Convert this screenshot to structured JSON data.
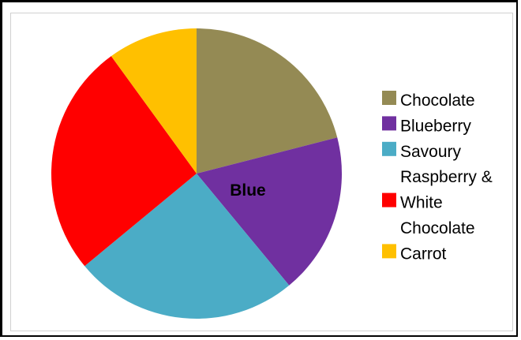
{
  "chart_data": {
    "type": "pie",
    "title": "",
    "slices": [
      {
        "label": "Chocolate",
        "value": 21,
        "color": "#948a54"
      },
      {
        "label": "Blueberry",
        "value": 18,
        "color": "#7030a0"
      },
      {
        "label": "Savoury",
        "value": 25,
        "color": "#4bacc6"
      },
      {
        "label": "Raspberry & White Chocolate",
        "value": 26,
        "color": "#ff0000"
      },
      {
        "label": "Carrot",
        "value": 10,
        "color": "#ffc000"
      }
    ],
    "start_angle_deg": 0,
    "direction": "clockwise",
    "legend_position": "right",
    "annotation": "Blue"
  },
  "legend": [
    {
      "lines": [
        "Chocolate"
      ],
      "color": "#948a54",
      "icon": "square-swatch"
    },
    {
      "lines": [
        "Blueberry"
      ],
      "color": "#7030a0",
      "icon": "square-swatch"
    },
    {
      "lines": [
        "Savoury"
      ],
      "color": "#4bacc6",
      "icon": "square-swatch"
    },
    {
      "lines": [
        "Raspberry &",
        "White",
        "Chocolate"
      ],
      "color": "#ff0000",
      "icon": "square-swatch"
    },
    {
      "lines": [
        "Carrot"
      ],
      "color": "#ffc000",
      "icon": "square-swatch"
    }
  ]
}
